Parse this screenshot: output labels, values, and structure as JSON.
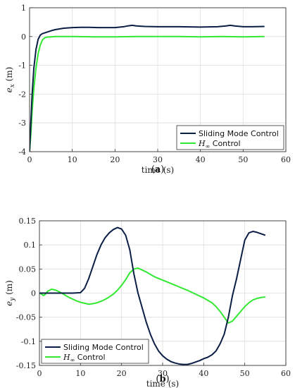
{
  "chart_data": [
    {
      "type": "line",
      "panel_label": "a",
      "xlabel": "time (s)",
      "ylabel": "e",
      "ylabel_sub": "x",
      "ylabel_unit": "(m)",
      "xlim": [
        0,
        60
      ],
      "ylim": [
        -4,
        1
      ],
      "xticks": [
        "0",
        "10",
        "20",
        "30",
        "40",
        "50",
        "60"
      ],
      "yticks": [
        "-4",
        "-3",
        "-2",
        "-1",
        "0",
        "1"
      ],
      "grid": true,
      "legend_position": "bottom-right",
      "series": [
        {
          "name": "Sliding Mode Control",
          "color": "#0b1f45",
          "x": [
            0,
            0.3,
            0.6,
            1.0,
            1.5,
            2.0,
            2.5,
            3.0,
            4.0,
            5.0,
            6.0,
            8.0,
            10.0,
            12.0,
            14.0,
            16.0,
            18.0,
            20.0,
            22.0,
            23.0,
            24.0,
            25.0,
            27.0,
            30.0,
            35.0,
            40.0,
            44.0,
            46.0,
            47.0,
            48.0,
            50.0,
            52.0,
            55.0
          ],
          "y": [
            -4.0,
            -3.0,
            -2.0,
            -1.1,
            -0.45,
            -0.1,
            0.05,
            0.1,
            0.15,
            0.2,
            0.24,
            0.29,
            0.31,
            0.32,
            0.32,
            0.31,
            0.31,
            0.31,
            0.34,
            0.37,
            0.39,
            0.37,
            0.35,
            0.34,
            0.34,
            0.33,
            0.34,
            0.37,
            0.39,
            0.37,
            0.34,
            0.34,
            0.35
          ]
        },
        {
          "name": "H∞ Control",
          "name_main": "H",
          "name_sub": "∞",
          "name_rest": " Control",
          "color": "#33e833",
          "x": [
            0,
            0.3,
            0.6,
            1.0,
            1.5,
            2.0,
            2.5,
            3.0,
            3.5,
            4.0,
            5.0,
            6.0,
            10.0,
            15.0,
            20.0,
            25.0,
            30.0,
            35.0,
            40.0,
            45.0,
            50.0,
            55.0
          ],
          "y": [
            -4.0,
            -3.4,
            -2.6,
            -1.8,
            -1.1,
            -0.6,
            -0.3,
            -0.12,
            -0.05,
            -0.02,
            -0.01,
            0.0,
            0.0,
            -0.01,
            -0.01,
            0.0,
            0.0,
            0.0,
            -0.01,
            0.0,
            -0.01,
            0.0
          ]
        }
      ]
    },
    {
      "type": "line",
      "panel_label": "b",
      "xlabel": "time (s)",
      "ylabel": "e",
      "ylabel_sub": "y",
      "ylabel_unit": "(m)",
      "xlim": [
        0,
        60
      ],
      "ylim": [
        -0.15,
        0.15
      ],
      "xticks": [
        "0",
        "10",
        "20",
        "30",
        "40",
        "50",
        "60"
      ],
      "yticks": [
        "-0.15",
        "-0.1",
        "-0.05",
        "0",
        "0.05",
        "0.1",
        "0.15"
      ],
      "grid": true,
      "legend_position": "bottom-left",
      "series": [
        {
          "name": "Sliding Mode Control",
          "color": "#0b1f45",
          "x": [
            0,
            2,
            4,
            6,
            8,
            10,
            11,
            12,
            13,
            14,
            15,
            16,
            17,
            18,
            19,
            20,
            21,
            22,
            23,
            24,
            25,
            26,
            27,
            28,
            29,
            30,
            31,
            32,
            33,
            34,
            35,
            36,
            37,
            38,
            39,
            40,
            41,
            42,
            43,
            44,
            45,
            46,
            47,
            48,
            49,
            50,
            51,
            52,
            53,
            54,
            55
          ],
          "y": [
            0.0,
            0.0,
            0.0,
            0.0,
            0.0,
            0.001,
            0.01,
            0.03,
            0.055,
            0.08,
            0.1,
            0.115,
            0.125,
            0.132,
            0.136,
            0.133,
            0.12,
            0.09,
            0.04,
            0.0,
            -0.03,
            -0.06,
            -0.085,
            -0.105,
            -0.12,
            -0.13,
            -0.137,
            -0.142,
            -0.145,
            -0.147,
            -0.148,
            -0.148,
            -0.146,
            -0.143,
            -0.14,
            -0.136,
            -0.133,
            -0.128,
            -0.12,
            -0.105,
            -0.085,
            -0.05,
            -0.005,
            0.03,
            0.07,
            0.11,
            0.125,
            0.128,
            0.126,
            0.123,
            0.12
          ]
        },
        {
          "name": "H∞ Control",
          "name_main": "H",
          "name_sub": "∞",
          "name_rest": " Control",
          "color": "#33e833",
          "x": [
            0,
            0.5,
            1,
            1.5,
            2,
            3,
            4,
            5,
            6,
            7,
            8,
            9,
            10,
            11,
            12,
            13,
            14,
            15,
            16,
            17,
            18,
            19,
            20,
            21,
            22,
            23,
            24,
            25,
            26,
            27,
            28,
            30,
            32,
            34,
            36,
            38,
            40,
            42,
            43,
            44,
            45,
            46,
            47,
            48,
            49,
            50,
            51,
            52,
            53,
            54,
            55
          ],
          "y": [
            0.0,
            -0.002,
            -0.005,
            -0.002,
            0.004,
            0.008,
            0.006,
            0.002,
            -0.003,
            -0.008,
            -0.012,
            -0.016,
            -0.019,
            -0.021,
            -0.023,
            -0.022,
            -0.02,
            -0.017,
            -0.013,
            -0.008,
            -0.002,
            0.006,
            0.016,
            0.028,
            0.042,
            0.05,
            0.052,
            0.048,
            0.044,
            0.039,
            0.034,
            0.027,
            0.02,
            0.013,
            0.006,
            -0.002,
            -0.01,
            -0.02,
            -0.028,
            -0.038,
            -0.05,
            -0.062,
            -0.058,
            -0.048,
            -0.038,
            -0.028,
            -0.02,
            -0.014,
            -0.011,
            -0.009,
            -0.008
          ]
        }
      ]
    }
  ]
}
